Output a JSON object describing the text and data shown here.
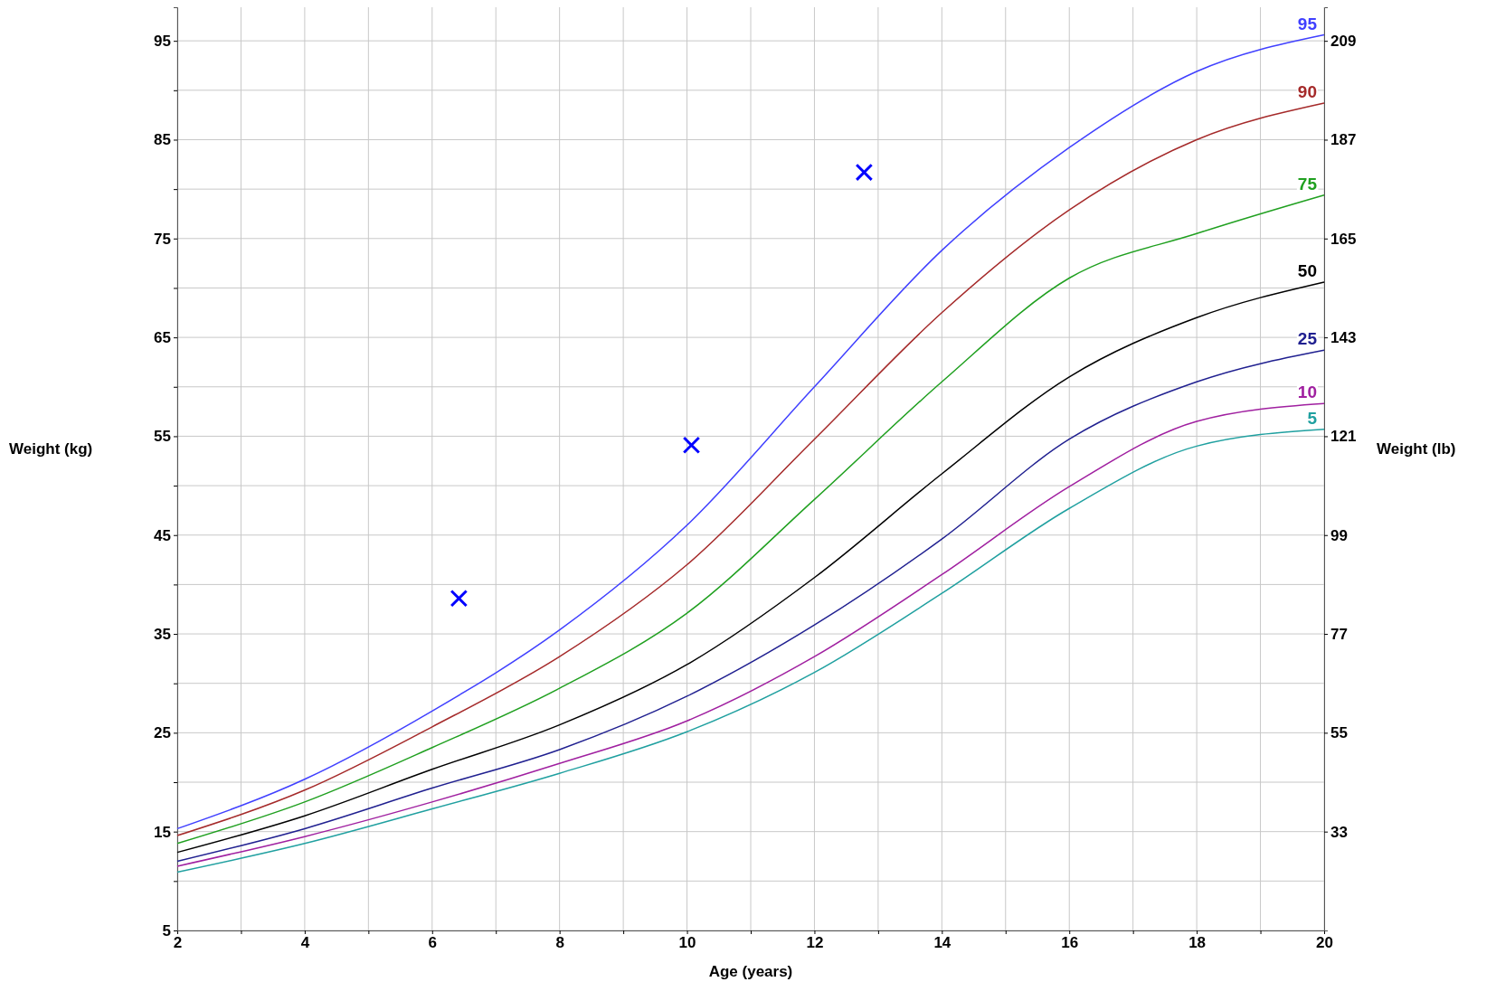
{
  "chart_data": {
    "type": "line",
    "xlabel": "Age (years)",
    "ylabel": "Weight (kg)",
    "y2label": "Weight (lb)",
    "xlim": [
      2,
      20
    ],
    "ylim": [
      5,
      98.4
    ],
    "y2lim": [
      11,
      216.48
    ],
    "xticks": [
      2,
      {
        "value": 3,
        "label": null
      },
      4,
      {
        "value": 5,
        "label": null
      },
      6,
      {
        "value": 7,
        "label": null
      },
      8,
      {
        "value": 9,
        "label": null
      },
      10,
      {
        "value": 11,
        "label": null
      },
      12,
      {
        "value": 13,
        "label": null
      },
      14,
      {
        "value": 15,
        "label": null
      },
      16,
      {
        "value": 17,
        "label": null
      },
      18,
      {
        "value": 19,
        "label": null
      },
      20
    ],
    "yticks": [
      5,
      {
        "value": 10,
        "label": null
      },
      15,
      {
        "value": 20,
        "label": null
      },
      25,
      {
        "value": 30,
        "label": null
      },
      35,
      {
        "value": 40,
        "label": null
      },
      45,
      {
        "value": 50,
        "label": null
      },
      55,
      {
        "value": 60,
        "label": null
      },
      65,
      {
        "value": 70,
        "label": null
      },
      75,
      {
        "value": 80,
        "label": null
      },
      85,
      {
        "value": 90,
        "label": null
      },
      95
    ],
    "y2ticks": [
      33,
      55,
      77,
      99,
      121,
      143,
      165,
      187,
      209
    ],
    "grid": true,
    "line_style": "solid",
    "marker": "none",
    "x": [
      2,
      4,
      6,
      8,
      10,
      12,
      14,
      16,
      18,
      20
    ],
    "series": [
      {
        "name": "95",
        "color": "#4040ff",
        "values": [
          15.3,
          20.3,
          27.2,
          35.4,
          46.0,
          60.0,
          73.8,
          84.2,
          91.9,
          95.6
        ]
      },
      {
        "name": "90",
        "color": "#a52a2a",
        "values": [
          14.6,
          19.2,
          25.6,
          32.7,
          42.0,
          54.7,
          67.5,
          77.9,
          85.0,
          88.7
        ]
      },
      {
        "name": "75",
        "color": "#20a020",
        "values": [
          13.8,
          18.0,
          23.5,
          29.5,
          37.1,
          48.6,
          60.5,
          71.0,
          75.5,
          79.4
        ]
      },
      {
        "name": "50",
        "color": "#000000",
        "values": [
          12.9,
          16.6,
          21.3,
          25.8,
          31.9,
          40.7,
          51.2,
          61.0,
          67.0,
          70.6
        ]
      },
      {
        "name": "25",
        "color": "#202090",
        "values": [
          12.0,
          15.3,
          19.4,
          23.3,
          28.7,
          35.9,
          44.6,
          54.7,
          60.5,
          63.7
        ]
      },
      {
        "name": "10",
        "color": "#a020a0",
        "values": [
          11.5,
          14.5,
          18.0,
          21.9,
          26.2,
          32.7,
          41.0,
          49.9,
          56.5,
          58.3
        ]
      },
      {
        "name": "5",
        "color": "#20a0a0",
        "values": [
          10.9,
          13.8,
          17.3,
          20.9,
          25.1,
          31.1,
          39.1,
          47.7,
          54.0,
          55.7
        ]
      },
      {
        "type": "scatter",
        "marker": "cross",
        "color": "#0000ff",
        "x": [
          6.42,
          10.07,
          12.78
        ],
        "values": [
          38.6,
          54.1,
          81.7
        ]
      }
    ]
  }
}
